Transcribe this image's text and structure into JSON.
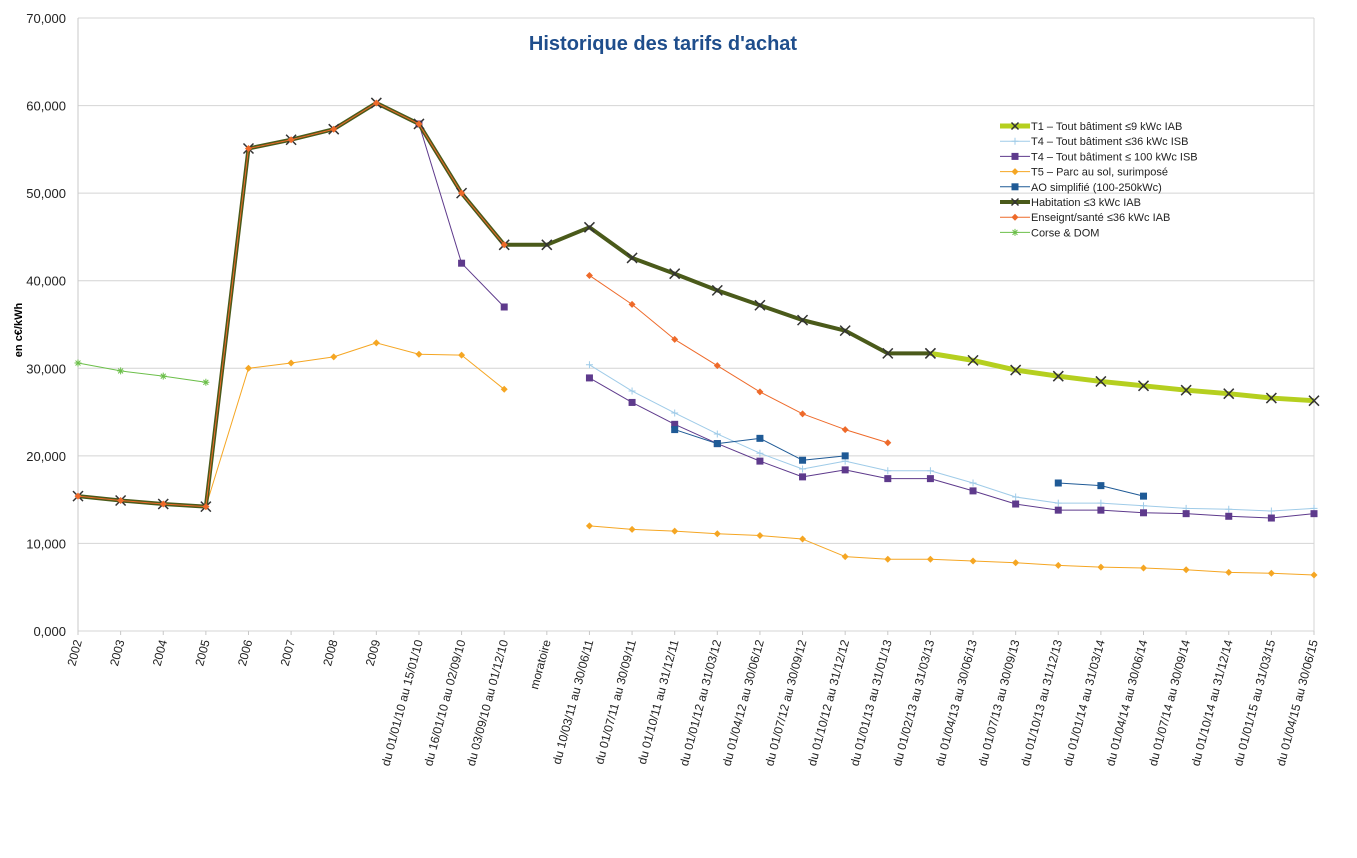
{
  "chart_data": {
    "type": "line",
    "title": "Historique des tarifs d'achat",
    "ylabel": "en c€/kWh",
    "xlabel": "",
    "ylim": [
      0,
      70
    ],
    "yticks": [
      "0,000",
      "10,000",
      "20,000",
      "30,000",
      "40,000",
      "50,000",
      "60,000",
      "70,000"
    ],
    "grid": true,
    "legend_position": "top-right",
    "categories": [
      "2002",
      "2003",
      "2004",
      "2005",
      "2006",
      "2007",
      "2008",
      "2009",
      "du 01/01/10 au 15/01/10",
      "du 16/01/10 au 02/09/10",
      "du 03/09/10 au 01/12/10",
      "moratoire",
      "du 10/03/11 au 30/06/11",
      "du 01/07/11 au 30/09/11",
      "du 01/10/11 au 31/12/11",
      "du 01/01/12 au 31/03/12",
      "du 01/04/12 au 30/06/12",
      "du 01/07/12 au 30/09/12",
      "du 01/10/12 au 31/12/12",
      "du 01/01/13 au 31/01/13",
      "du 01/02/13 au 31/03/13",
      "du 01/04/13 au 30/06/13",
      "du 01/07/13 au 30/09/13",
      "du 01/10/13 au 31/12/13",
      "du 01/01/14 au 31/03/14",
      "du 01/04/14 au 30/06/14",
      "du 01/07/14 au 30/09/14",
      "du 01/10/14 au 31/12/14",
      "du 01/01/15 au 31/03/15",
      "du 01/04/15 au 30/06/15"
    ],
    "series": [
      {
        "name": "T1 – Tout bâtiment ≤9 kWc IAB",
        "color": "#b5cf1f",
        "width": 5,
        "marker": "x",
        "values": [
          null,
          null,
          null,
          null,
          null,
          null,
          null,
          null,
          null,
          null,
          null,
          null,
          null,
          null,
          null,
          null,
          null,
          null,
          null,
          null,
          31.7,
          30.9,
          29.8,
          29.1,
          28.5,
          28.0,
          27.5,
          27.1,
          26.6,
          26.3
        ]
      },
      {
        "name": "T4 – Tout bâtiment ≤36 kWc ISB",
        "color": "#9fcbe8",
        "width": 1,
        "marker": "plus",
        "values": [
          null,
          null,
          null,
          null,
          null,
          null,
          null,
          null,
          null,
          null,
          null,
          null,
          30.4,
          27.4,
          24.9,
          22.5,
          20.3,
          18.5,
          19.4,
          18.3,
          18.3,
          16.9,
          15.3,
          14.6,
          14.6,
          14.3,
          14.0,
          13.9,
          13.7,
          14.0
        ]
      },
      {
        "name": "T4 – Tout bâtiment ≤ 100 kWc ISB",
        "color": "#5e3a8c",
        "width": 1,
        "marker": "square",
        "values": [
          null,
          null,
          null,
          null,
          null,
          null,
          null,
          null,
          57.9,
          42.0,
          37.0,
          null,
          28.9,
          26.1,
          23.6,
          21.4,
          19.4,
          17.6,
          18.4,
          17.4,
          17.4,
          16.0,
          14.5,
          13.8,
          13.8,
          13.5,
          13.4,
          13.1,
          12.9,
          13.4
        ]
      },
      {
        "name": "T5 – Parc au sol, surimposé",
        "color": "#f5a623",
        "width": 1,
        "marker": "diamond",
        "values": [
          null,
          null,
          null,
          14.2,
          30.0,
          30.6,
          31.3,
          32.9,
          31.6,
          31.5,
          27.6,
          null,
          12.0,
          11.6,
          11.4,
          11.1,
          10.9,
          10.5,
          8.5,
          8.2,
          8.2,
          8.0,
          7.8,
          7.5,
          7.3,
          7.2,
          7.0,
          6.7,
          6.6,
          6.4
        ]
      },
      {
        "name": "AO simplifié (100-250kWc)",
        "color": "#1f5a96",
        "width": 1,
        "marker": "square",
        "values": [
          null,
          null,
          null,
          null,
          null,
          null,
          null,
          null,
          null,
          null,
          null,
          null,
          null,
          null,
          23.0,
          21.4,
          22.0,
          19.5,
          20.0,
          null,
          null,
          null,
          null,
          16.9,
          16.6,
          15.4,
          null,
          null,
          null,
          null
        ]
      },
      {
        "name": "Habitation ≤3 kWc IAB",
        "color": "#4a5a1a",
        "width": 4,
        "marker": "x",
        "values": [
          15.4,
          14.9,
          14.5,
          14.2,
          55.1,
          56.1,
          57.3,
          60.3,
          57.9,
          50.0,
          44.1,
          44.1,
          46.1,
          42.6,
          40.8,
          38.9,
          37.2,
          35.5,
          34.3,
          31.7,
          31.7,
          null,
          null,
          null,
          null,
          null,
          null,
          null,
          null,
          null
        ]
      },
      {
        "name": "Enseignt/santé ≤36 kWc IAB",
        "color": "#ee6a2a",
        "width": 1,
        "marker": "diamond",
        "values": [
          15.4,
          14.9,
          14.5,
          14.2,
          55.1,
          56.1,
          57.3,
          60.3,
          57.9,
          50.0,
          44.1,
          null,
          40.6,
          37.3,
          33.3,
          30.3,
          27.3,
          24.8,
          23.0,
          21.5,
          null,
          null,
          null,
          null,
          null,
          null,
          null,
          null,
          null,
          null
        ]
      },
      {
        "name": "Corse & DOM",
        "color": "#6cbf4a",
        "width": 1,
        "marker": "star",
        "values": [
          30.6,
          29.7,
          29.1,
          28.4,
          null,
          null,
          null,
          null,
          null,
          null,
          null,
          null,
          null,
          null,
          null,
          null,
          null,
          null,
          null,
          null,
          null,
          null,
          null,
          null,
          null,
          null,
          null,
          null,
          null,
          null
        ]
      }
    ]
  }
}
